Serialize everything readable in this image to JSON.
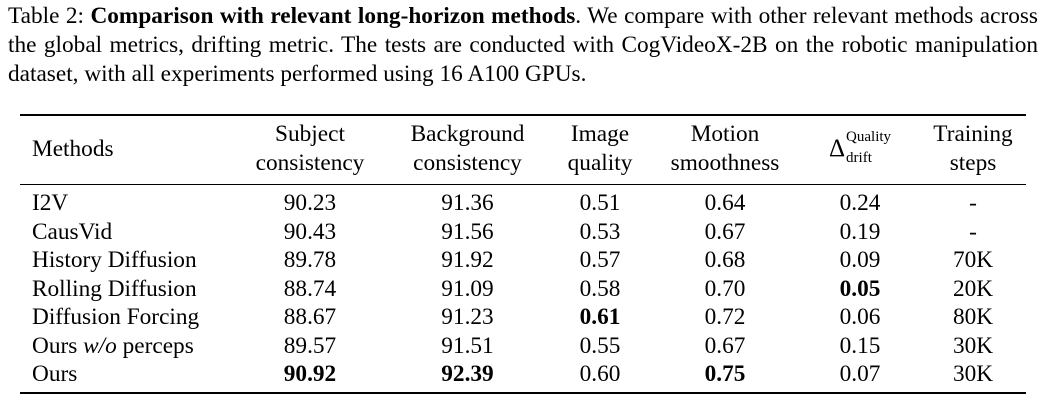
{
  "caption": {
    "prefix": "Table 2: ",
    "title": "Comparison with relevant long-horizon methods",
    "body": ".  We compare with other relevant methods across the global metrics, drifting metric. The tests are conducted with CogVideoX-2B on the robotic manipulation dataset, with all experiments performed using 16 A100 GPUs."
  },
  "table": {
    "headers": {
      "methods": "Methods",
      "subject": [
        "Subject",
        "consistency"
      ],
      "background": [
        "Background",
        "consistency"
      ],
      "image_quality": [
        "Image",
        "quality"
      ],
      "motion": [
        "Motion",
        "smoothness"
      ],
      "drift": {
        "symbol": "Δ",
        "sup": "Quality",
        "sub": "drift"
      },
      "training": [
        "Training",
        "steps"
      ]
    },
    "rows": [
      {
        "method": "I2V",
        "method_parts": [
          {
            "text": "I2V",
            "italic": false
          }
        ],
        "subject": "90.23",
        "background": "91.36",
        "image_quality": "0.51",
        "motion": "0.64",
        "drift": "0.24",
        "steps": "-"
      },
      {
        "method": "CausVid",
        "method_parts": [
          {
            "text": "CausVid",
            "italic": false
          }
        ],
        "subject": "90.43",
        "background": "91.56",
        "image_quality": "0.53",
        "motion": "0.67",
        "drift": "0.19",
        "steps": "-"
      },
      {
        "method": "History Diffusion",
        "method_parts": [
          {
            "text": "History Diffusion",
            "italic": false
          }
        ],
        "subject": "89.78",
        "background": "91.92",
        "image_quality": "0.57",
        "motion": "0.68",
        "drift": "0.09",
        "steps": "70K"
      },
      {
        "method": "Rolling Diffusion",
        "method_parts": [
          {
            "text": "Rolling Diffusion",
            "italic": false
          }
        ],
        "subject": "88.74",
        "background": "91.09",
        "image_quality": "0.58",
        "motion": "0.70",
        "drift": "0.05",
        "steps": "20K",
        "bold": [
          "drift"
        ]
      },
      {
        "method": "Diffusion Forcing",
        "method_parts": [
          {
            "text": "Diffusion Forcing",
            "italic": false
          }
        ],
        "subject": "88.67",
        "background": "91.23",
        "image_quality": "0.61",
        "motion": "0.72",
        "drift": "0.06",
        "steps": "80K",
        "bold": [
          "image_quality"
        ]
      },
      {
        "method": "Ours w/o perceps",
        "method_parts": [
          {
            "text": "Ours ",
            "italic": false
          },
          {
            "text": "w/o",
            "italic": true
          },
          {
            "text": " perceps",
            "italic": false
          }
        ],
        "subject": "89.57",
        "background": "91.51",
        "image_quality": "0.55",
        "motion": "0.67",
        "drift": "0.15",
        "steps": "30K"
      },
      {
        "method": "Ours",
        "method_parts": [
          {
            "text": "Ours",
            "italic": false
          }
        ],
        "subject": "90.92",
        "background": "92.39",
        "image_quality": "0.60",
        "motion": "0.75",
        "drift": "0.07",
        "steps": "30K",
        "bold": [
          "subject",
          "background",
          "motion"
        ]
      }
    ]
  }
}
